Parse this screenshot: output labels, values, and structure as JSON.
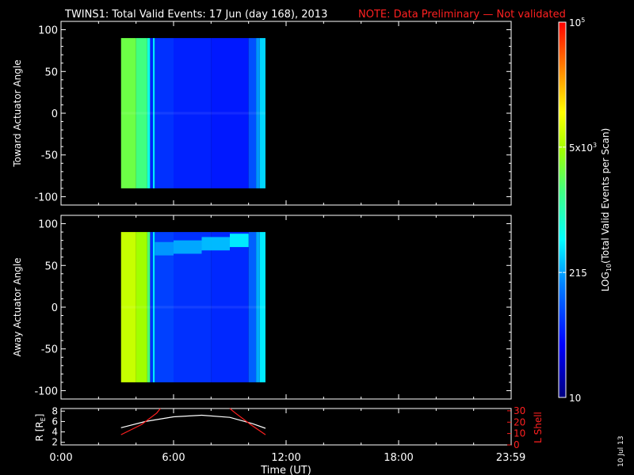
{
  "header": {
    "title": "TWINS1: Total Valid Events: 17 Jun (day 168), 2013",
    "note": "NOTE: Data Preliminary — Not validated"
  },
  "date_stamp": "10 Jul 13",
  "colors": {
    "background": "#000000",
    "axes": "#ffffff",
    "note": "#ff2020",
    "lshell": "#ff2020",
    "radius": "#ffffff"
  },
  "chart_data": [
    {
      "type": "heatmap",
      "ylabel": "Toward Actuator Angle",
      "xlim": [
        0,
        24
      ],
      "ylim": [
        -110,
        110
      ],
      "y_ticks": [
        100,
        50,
        0,
        -50,
        -100
      ],
      "y_tick_labels": [
        "100",
        "50",
        "0",
        "-50",
        "-100"
      ],
      "data_extent": {
        "t_start": 3.2,
        "t_end": 10.9,
        "angle_min": -90,
        "angle_max": 90
      },
      "columns": [
        {
          "t0": 3.2,
          "t1": 4.0,
          "level": 0.6
        },
        {
          "t0": 4.0,
          "t1": 4.6,
          "level": 0.55
        },
        {
          "t0": 4.6,
          "t1": 4.75,
          "level": 0.45
        },
        {
          "t0": 4.75,
          "t1": 4.9,
          "level": 0.18
        },
        {
          "t0": 4.9,
          "t1": 5.0,
          "level": 0.4
        },
        {
          "t0": 5.0,
          "t1": 6.0,
          "level": 0.2
        },
        {
          "t0": 6.0,
          "t1": 8.0,
          "level": 0.18
        },
        {
          "t0": 8.0,
          "t1": 10.0,
          "level": 0.17
        },
        {
          "t0": 10.0,
          "t1": 10.4,
          "level": 0.24
        },
        {
          "t0": 10.4,
          "t1": 10.6,
          "level": 0.32
        },
        {
          "t0": 10.6,
          "t1": 10.9,
          "level": 0.38
        }
      ],
      "bands": []
    },
    {
      "type": "heatmap",
      "ylabel": "Away Actuator Angle",
      "xlim": [
        0,
        24
      ],
      "ylim": [
        -110,
        110
      ],
      "y_ticks": [
        100,
        50,
        0,
        -50,
        -100
      ],
      "y_tick_labels": [
        "100",
        "50",
        "0",
        "-50",
        "-100"
      ],
      "data_extent": {
        "t_start": 3.2,
        "t_end": 10.9,
        "angle_min": -90,
        "angle_max": 90
      },
      "columns": [
        {
          "t0": 3.2,
          "t1": 4.0,
          "level": 0.7
        },
        {
          "t0": 4.0,
          "t1": 4.6,
          "level": 0.66
        },
        {
          "t0": 4.6,
          "t1": 4.75,
          "level": 0.56
        },
        {
          "t0": 4.75,
          "t1": 4.9,
          "level": 0.2
        },
        {
          "t0": 4.9,
          "t1": 5.0,
          "level": 0.4
        },
        {
          "t0": 5.0,
          "t1": 6.0,
          "level": 0.22
        },
        {
          "t0": 6.0,
          "t1": 8.0,
          "level": 0.2
        },
        {
          "t0": 8.0,
          "t1": 10.0,
          "level": 0.19
        },
        {
          "t0": 10.0,
          "t1": 10.4,
          "level": 0.26
        },
        {
          "t0": 10.4,
          "t1": 10.6,
          "level": 0.34
        },
        {
          "t0": 10.6,
          "t1": 10.9,
          "level": 0.4
        }
      ],
      "bands": [
        {
          "t0": 5.0,
          "t1": 6.0,
          "angle_lo": 62,
          "angle_hi": 78,
          "level": 0.33
        },
        {
          "t0": 6.0,
          "t1": 7.5,
          "angle_lo": 64,
          "angle_hi": 80,
          "level": 0.35
        },
        {
          "t0": 7.5,
          "t1": 9.0,
          "angle_lo": 68,
          "angle_hi": 84,
          "level": 0.37
        },
        {
          "t0": 9.0,
          "t1": 10.0,
          "angle_lo": 72,
          "angle_hi": 88,
          "level": 0.42
        }
      ]
    },
    {
      "type": "line",
      "ylabel_left": "R [RE]",
      "ylabel_right": "L Shell",
      "xlim": [
        0,
        24
      ],
      "x_ticks": [
        0,
        6,
        12,
        18,
        23.983
      ],
      "x_tick_labels": [
        "0:00",
        "6:00",
        "12:00",
        "18:00",
        "23:59"
      ],
      "xlabel": "Time (UT)",
      "left_ylim": [
        1.5,
        8.5
      ],
      "left_ticks": [
        2,
        4,
        6,
        8
      ],
      "left_tick_labels": [
        "2",
        "4",
        "6",
        "8"
      ],
      "right_ylim": [
        0,
        32
      ],
      "right_ticks": [
        0,
        10,
        20,
        30
      ],
      "right_tick_labels": [
        "0",
        "10",
        "20",
        "30"
      ],
      "series": [
        {
          "color": "#ffffff",
          "axis": "left",
          "x": [
            3.2,
            4.5,
            6,
            7.5,
            9,
            10.2,
            10.9
          ],
          "y": [
            4.8,
            6.0,
            6.9,
            7.2,
            6.8,
            5.6,
            4.7
          ]
        },
        {
          "color": "#ff2020",
          "axis": "right",
          "x": [
            3.2,
            4.3,
            5.1,
            5.3
          ],
          "y": [
            9,
            18,
            28,
            32
          ]
        },
        {
          "color": "#ff2020",
          "axis": "right",
          "x": [
            9.0,
            9.3,
            10.1,
            10.9
          ],
          "y": [
            32,
            28,
            18,
            9
          ]
        }
      ]
    }
  ],
  "colorbar": {
    "title_parts": [
      "LOG",
      "10",
      "(Total Valid Events per Scan)"
    ],
    "ticks": [
      {
        "frac": 0.0,
        "label": "10"
      },
      {
        "frac": 0.333,
        "label": "215"
      },
      {
        "frac": 0.667,
        "label_base": "5x10",
        "label_exp": "3"
      },
      {
        "frac": 1.0,
        "label_base": "10",
        "label_exp": "5"
      }
    ]
  }
}
